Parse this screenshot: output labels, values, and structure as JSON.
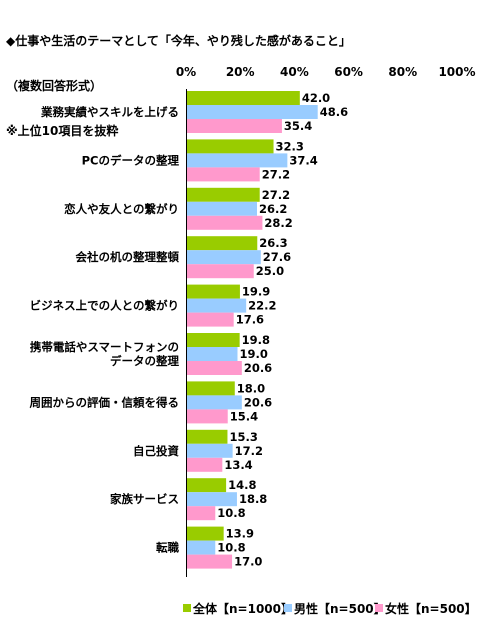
{
  "title_lines": [
    "◆仕事や生活のテーマとして「今年、やり残した感があること」",
    "（複数回答形式）",
    "※上位10項目を抜粋"
  ],
  "chart_data": {
    "type": "bar",
    "orientation": "horizontal",
    "xlim": [
      0,
      100
    ],
    "x_ticks": [
      "0%",
      "20%",
      "40%",
      "60%",
      "80%",
      "100%"
    ],
    "grid": false,
    "legend_position": "bottom",
    "categories": [
      [
        "業務実績やスキルを上げる"
      ],
      [
        "PCのデータの整理"
      ],
      [
        "恋人や友人との繋がり"
      ],
      [
        "会社の机の整理整頓"
      ],
      [
        "ビジネス上での人との繋がり"
      ],
      [
        "携帯電話やスマートフォンの",
        "データの整理"
      ],
      [
        "周囲からの評価・信頼を得る"
      ],
      [
        "自己投資"
      ],
      [
        "家族サービス"
      ],
      [
        "転職"
      ]
    ],
    "series": [
      {
        "name": "全体【n=1000】",
        "color": "#99cc00",
        "values": [
          42.0,
          32.3,
          27.2,
          26.3,
          19.9,
          19.8,
          18.0,
          15.3,
          14.8,
          13.9
        ],
        "labels": [
          "42.0",
          "32.3",
          "27.2",
          "26.3",
          "19.9",
          "19.8",
          "18.0",
          "15.3",
          "14.8",
          "13.9"
        ]
      },
      {
        "name": "男性【n=500】",
        "color": "#99ccff",
        "values": [
          48.6,
          37.4,
          26.2,
          27.6,
          22.2,
          19.0,
          20.6,
          17.2,
          18.8,
          10.8
        ],
        "labels": [
          "48.6",
          "37.4",
          "26.2",
          "27.6",
          "22.2",
          "19.0",
          "20.6",
          "17.2",
          "18.8",
          "10.8"
        ]
      },
      {
        "name": "女性【n=500】",
        "color": "#ff99cc",
        "values": [
          35.4,
          27.2,
          28.2,
          25.0,
          17.6,
          20.6,
          15.4,
          13.4,
          10.8,
          17.0
        ],
        "labels": [
          "35.4",
          "27.2",
          "28.2",
          "25.0",
          "17.6",
          "20.6",
          "15.4",
          "13.4",
          "10.8",
          "17.0"
        ]
      }
    ]
  }
}
